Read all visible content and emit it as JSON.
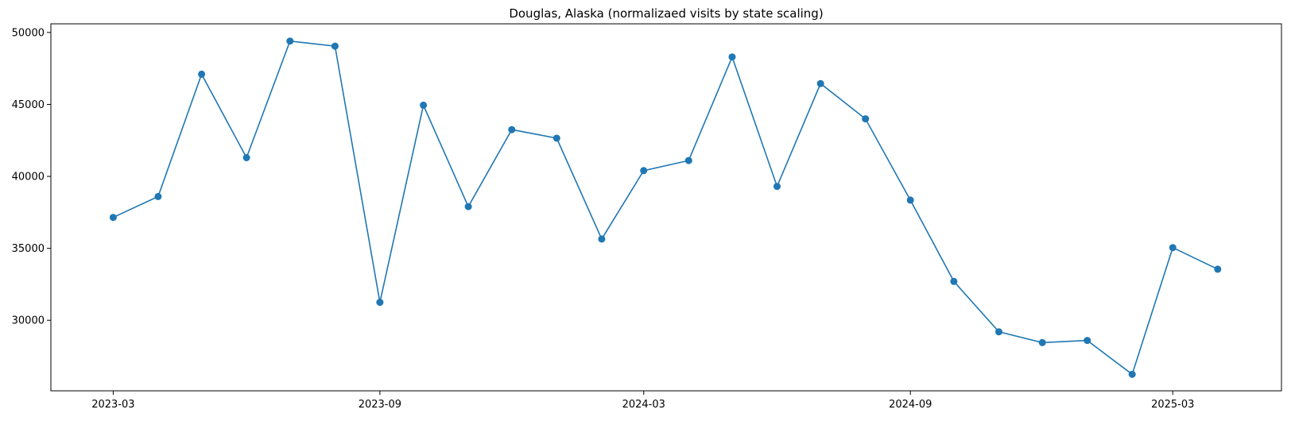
{
  "chart_data": {
    "type": "line",
    "title": "Douglas, Alaska (normalizaed visits by state scaling)",
    "xlabel": "",
    "ylabel": "",
    "x": [
      "2023-03",
      "2023-04",
      "2023-05",
      "2023-06",
      "2023-07",
      "2023-08",
      "2023-09",
      "2023-10",
      "2023-11",
      "2023-12",
      "2024-01",
      "2024-02",
      "2024-03",
      "2024-04",
      "2024-05",
      "2024-06",
      "2024-07",
      "2024-08",
      "2024-09",
      "2024-10",
      "2024-11",
      "2024-12",
      "2025-01",
      "2025-02",
      "2025-03",
      "2025-04"
    ],
    "series": [
      {
        "values": [
          37150,
          38600,
          47100,
          41300,
          49400,
          49050,
          31250,
          44950,
          37900,
          43250,
          42650,
          35650,
          40400,
          41100,
          48300,
          39300,
          46450,
          44000,
          38350,
          32700,
          29200,
          28450,
          28600,
          26250,
          35050,
          33550
        ]
      }
    ],
    "x_ticks": [
      "2023-03",
      "2023-09",
      "2024-03",
      "2024-09",
      "2025-03"
    ],
    "y_ticks": [
      30000,
      35000,
      40000,
      45000,
      50000
    ],
    "xlim": [
      "2023-01-17",
      "2025-05-15"
    ],
    "ylim": [
      25100,
      50600
    ],
    "grid": false,
    "legend": "none",
    "color": "#1f77b4"
  }
}
